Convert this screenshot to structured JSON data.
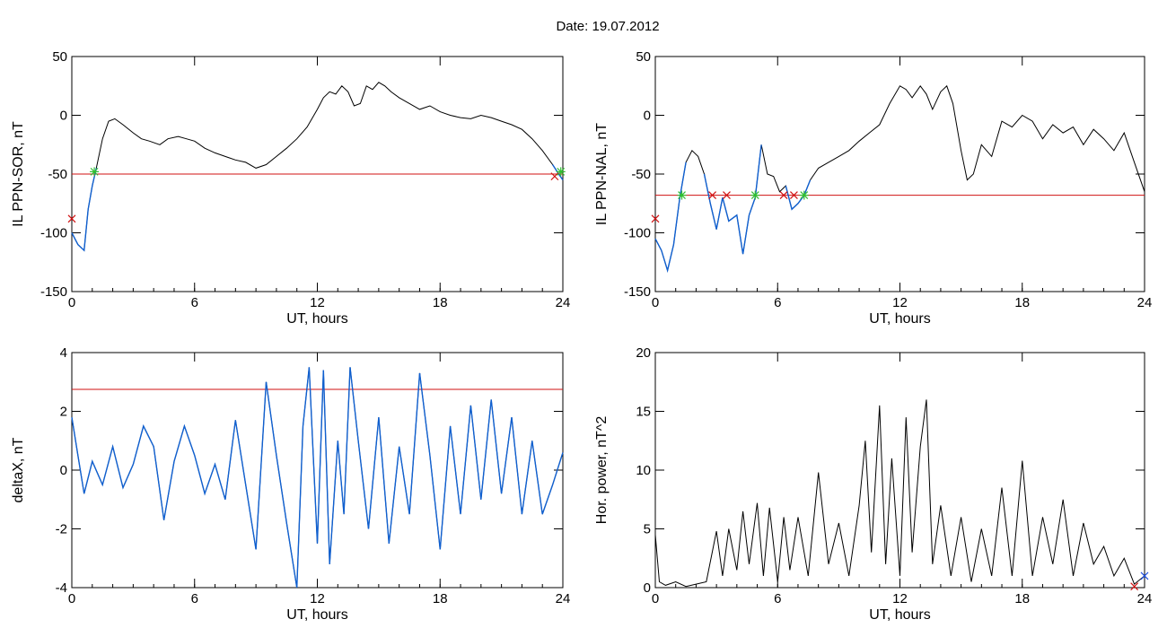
{
  "figure": {
    "title": "Date:  19.07.2012"
  },
  "colors": {
    "curve": "#000000",
    "threshold": "#d01010",
    "below_segment": "#1060d0",
    "marker_cross_red": "#d01010",
    "marker_star_green": "#30c030",
    "marker_cross_blue": "#2050e0"
  },
  "chart_data": [
    {
      "type": "line",
      "title": "",
      "xlabel": "UT, hours",
      "ylabel": "IL PPN-SOR, nT",
      "xlim": [
        0,
        24
      ],
      "ylim": [
        -150,
        50
      ],
      "xticks": [
        0,
        6,
        12,
        18,
        24
      ],
      "yticks": [
        -150,
        -100,
        -50,
        0,
        50
      ],
      "grid": false,
      "threshold": -50,
      "series": [
        {
          "x": [
            0,
            0.3,
            0.6,
            0.8,
            1.0,
            1.2,
            1.5,
            1.8,
            2.1,
            2.5,
            3.0,
            3.4,
            3.8,
            4.3,
            4.7,
            5.2,
            5.6,
            6.0,
            6.5,
            7.0,
            7.5,
            8.0,
            8.5,
            9.0,
            9.5,
            10.0,
            10.5,
            11.0,
            11.5,
            12.0,
            12.3,
            12.6,
            12.9,
            13.2,
            13.5,
            13.8,
            14.1,
            14.4,
            14.7,
            15.0,
            15.3,
            15.6,
            16.0,
            16.5,
            17.0,
            17.5,
            18.0,
            18.5,
            19.0,
            19.5,
            20.0,
            20.5,
            21.0,
            21.5,
            22.0,
            22.5,
            23.0,
            23.5,
            23.8,
            24.0
          ],
          "y": [
            -100,
            -110,
            -115,
            -80,
            -60,
            -45,
            -20,
            -5,
            -3,
            -8,
            -15,
            -20,
            -22,
            -25,
            -20,
            -18,
            -20,
            -22,
            -28,
            -32,
            -35,
            -38,
            -40,
            -45,
            -42,
            -35,
            -28,
            -20,
            -10,
            5,
            15,
            20,
            18,
            25,
            20,
            8,
            10,
            25,
            22,
            28,
            25,
            20,
            15,
            10,
            5,
            8,
            3,
            0,
            -2,
            -3,
            0,
            -2,
            -5,
            -8,
            -12,
            -20,
            -30,
            -42,
            -50,
            -55
          ]
        }
      ],
      "markers": [
        {
          "x": 0.0,
          "y": -88,
          "symbol": "x",
          "color": "red"
        },
        {
          "x": 1.1,
          "y": -48,
          "symbol": "*",
          "color": "green"
        },
        {
          "x": 23.6,
          "y": -52,
          "symbol": "x",
          "color": "red"
        },
        {
          "x": 23.9,
          "y": -48,
          "symbol": "*",
          "color": "green"
        }
      ]
    },
    {
      "type": "line",
      "title": "",
      "xlabel": "UT, hours",
      "ylabel": "IL PPN-NAL, nT",
      "xlim": [
        0,
        24
      ],
      "ylim": [
        -150,
        50
      ],
      "xticks": [
        0,
        6,
        12,
        18,
        24
      ],
      "yticks": [
        -150,
        -100,
        -50,
        0,
        50
      ],
      "grid": false,
      "threshold": -68,
      "series": [
        {
          "x": [
            0,
            0.3,
            0.6,
            0.9,
            1.2,
            1.5,
            1.8,
            2.1,
            2.4,
            2.7,
            3.0,
            3.3,
            3.6,
            4.0,
            4.3,
            4.6,
            4.9,
            5.2,
            5.5,
            5.8,
            6.1,
            6.4,
            6.7,
            7.0,
            7.3,
            7.6,
            8.0,
            8.5,
            9.0,
            9.5,
            10.0,
            10.5,
            11.0,
            11.5,
            12.0,
            12.3,
            12.6,
            13.0,
            13.3,
            13.6,
            14.0,
            14.3,
            14.6,
            15.0,
            15.3,
            15.6,
            16.0,
            16.5,
            17.0,
            17.5,
            18.0,
            18.5,
            19.0,
            19.5,
            20.0,
            20.5,
            21.0,
            21.5,
            22.0,
            22.5,
            23.0,
            23.5,
            24.0
          ],
          "y": [
            -105,
            -115,
            -132,
            -110,
            -70,
            -40,
            -30,
            -35,
            -50,
            -75,
            -97,
            -70,
            -90,
            -85,
            -118,
            -85,
            -70,
            -25,
            -50,
            -52,
            -65,
            -60,
            -80,
            -75,
            -68,
            -55,
            -45,
            -40,
            -35,
            -30,
            -22,
            -15,
            -8,
            10,
            25,
            22,
            15,
            25,
            18,
            5,
            20,
            25,
            10,
            -30,
            -55,
            -50,
            -25,
            -35,
            -5,
            -10,
            0,
            -5,
            -20,
            -8,
            -15,
            -10,
            -25,
            -12,
            -20,
            -30,
            -15,
            -40,
            -65
          ]
        }
      ],
      "markers": [
        {
          "x": 0.0,
          "y": -88,
          "symbol": "x",
          "color": "red"
        },
        {
          "x": 1.3,
          "y": -68,
          "symbol": "*",
          "color": "green"
        },
        {
          "x": 2.8,
          "y": -68,
          "symbol": "x",
          "color": "red"
        },
        {
          "x": 3.5,
          "y": -68,
          "symbol": "x",
          "color": "red"
        },
        {
          "x": 4.9,
          "y": -68,
          "symbol": "*",
          "color": "green"
        },
        {
          "x": 6.3,
          "y": -68,
          "symbol": "x",
          "color": "red"
        },
        {
          "x": 6.8,
          "y": -68,
          "symbol": "x",
          "color": "red"
        },
        {
          "x": 7.3,
          "y": -68,
          "symbol": "*",
          "color": "green"
        }
      ]
    },
    {
      "type": "line",
      "title": "",
      "xlabel": "UT, hours",
      "ylabel": "deltaX, nT",
      "xlim": [
        0,
        24
      ],
      "ylim": [
        -4,
        4
      ],
      "xticks": [
        0,
        6,
        12,
        18,
        24
      ],
      "yticks": [
        -4,
        -2,
        0,
        2,
        4
      ],
      "grid": false,
      "threshold": 2.75,
      "series": [
        {
          "x": [
            0,
            0.3,
            0.6,
            1.0,
            1.5,
            2.0,
            2.5,
            3.0,
            3.5,
            4.0,
            4.5,
            5.0,
            5.5,
            6.0,
            6.5,
            7.0,
            7.5,
            8.0,
            8.5,
            9.0,
            9.5,
            10.0,
            10.5,
            11.0,
            11.3,
            11.6,
            12.0,
            12.3,
            12.6,
            13.0,
            13.3,
            13.6,
            14.0,
            14.5,
            15.0,
            15.5,
            16.0,
            16.5,
            17.0,
            17.5,
            18.0,
            18.5,
            19.0,
            19.5,
            20.0,
            20.5,
            21.0,
            21.5,
            22.0,
            22.5,
            23.0,
            23.5,
            24.0
          ],
          "y": [
            1.8,
            0.5,
            -0.8,
            0.3,
            -0.5,
            0.8,
            -0.6,
            0.2,
            1.5,
            0.8,
            -1.7,
            0.3,
            1.5,
            0.5,
            -0.8,
            0.2,
            -1.0,
            1.7,
            -0.5,
            -2.7,
            3.0,
            0.5,
            -1.8,
            -4.0,
            1.5,
            3.5,
            -2.5,
            3.4,
            -3.2,
            1.0,
            -1.5,
            3.5,
            1.0,
            -2.0,
            1.8,
            -2.5,
            0.8,
            -1.5,
            3.3,
            0.5,
            -2.7,
            1.5,
            -1.5,
            2.2,
            -1.0,
            2.4,
            -0.8,
            1.8,
            -1.5,
            1.0,
            -1.5,
            -0.5,
            0.6
          ]
        }
      ],
      "markers": []
    },
    {
      "type": "line",
      "title": "",
      "xlabel": "UT, hours",
      "ylabel": "Hor. power, nT^2",
      "xlim": [
        0,
        24
      ],
      "ylim": [
        0,
        20
      ],
      "xticks": [
        0,
        6,
        12,
        18,
        24
      ],
      "yticks": [
        0,
        5,
        10,
        15,
        20
      ],
      "grid": false,
      "threshold": null,
      "series": [
        {
          "x": [
            0,
            0.2,
            0.5,
            1.0,
            1.5,
            2.0,
            2.5,
            3.0,
            3.3,
            3.6,
            4.0,
            4.3,
            4.6,
            5.0,
            5.3,
            5.6,
            6.0,
            6.3,
            6.6,
            7.0,
            7.5,
            8.0,
            8.5,
            9.0,
            9.5,
            10.0,
            10.3,
            10.6,
            11.0,
            11.3,
            11.6,
            12.0,
            12.3,
            12.6,
            13.0,
            13.3,
            13.6,
            14.0,
            14.5,
            15.0,
            15.5,
            16.0,
            16.5,
            17.0,
            17.5,
            18.0,
            18.5,
            19.0,
            19.5,
            20.0,
            20.5,
            21.0,
            21.5,
            22.0,
            22.5,
            23.0,
            23.5,
            24.0
          ],
          "y": [
            4.5,
            0.5,
            0.2,
            0.5,
            0.1,
            0.3,
            0.5,
            4.8,
            1.0,
            5.0,
            1.5,
            6.5,
            2.0,
            7.2,
            1.0,
            6.8,
            0.5,
            6.0,
            1.5,
            6.0,
            1.0,
            9.8,
            2.0,
            5.5,
            1.0,
            7.0,
            12.5,
            3.0,
            15.5,
            2.0,
            11.0,
            1.0,
            14.5,
            3.0,
            12.0,
            16.0,
            2.0,
            7.0,
            1.0,
            6.0,
            0.5,
            5.0,
            1.0,
            8.5,
            1.0,
            10.8,
            1.0,
            6.0,
            2.0,
            7.5,
            1.0,
            5.5,
            2.0,
            3.5,
            1.0,
            2.5,
            0.3,
            1.0
          ]
        }
      ],
      "markers": [
        {
          "x": 23.5,
          "y": 0.1,
          "symbol": "x",
          "color": "red"
        },
        {
          "x": 24.0,
          "y": 1.0,
          "symbol": "x",
          "color": "blue"
        }
      ]
    }
  ]
}
